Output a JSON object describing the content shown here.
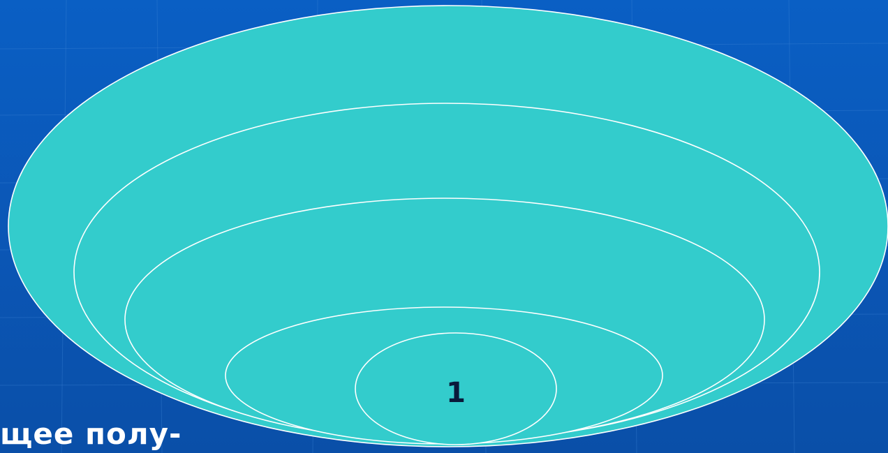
{
  "diagram": {
    "center_label": "1",
    "fill_color": "#33cccc",
    "stroke_color": "#ffffff",
    "label_color": "#0a1a3a",
    "background_color": "#0a5fc4"
  },
  "footer_text": "щее полу-"
}
